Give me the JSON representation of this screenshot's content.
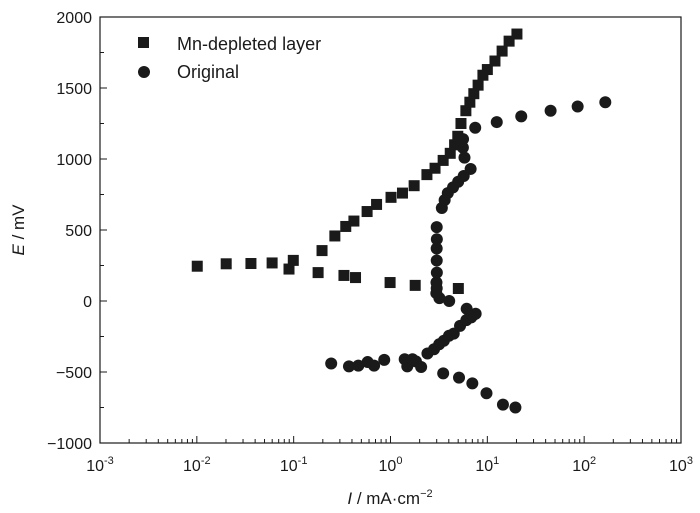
{
  "chart_data": {
    "type": "scatter",
    "x_scale": "log",
    "xlim": [
      0.001,
      1000
    ],
    "ylim": [
      -1000,
      2000
    ],
    "x_ticks": [
      {
        "base": "10",
        "exp": "-3"
      },
      {
        "base": "10",
        "exp": "-2"
      },
      {
        "base": "10",
        "exp": "-1"
      },
      {
        "base": "10",
        "exp": "0"
      },
      {
        "base": "10",
        "exp": "1"
      },
      {
        "base": "10",
        "exp": "2"
      },
      {
        "base": "10",
        "exp": "3"
      }
    ],
    "y_ticks": [
      "−1000",
      "−500",
      "0",
      "500",
      "1000",
      "1500",
      "2000"
    ],
    "xlabel": {
      "symbol": "I",
      "rest": " / mA·cm",
      "sup": "−2"
    },
    "ylabel": {
      "symbol": "E",
      "rest": " / mV"
    },
    "grid": false,
    "legend_position": "top-left",
    "series": [
      {
        "name": "Mn-depleted layer",
        "marker": "square",
        "color": "#1a1a1a",
        "points": [
          [
            0.0101,
            245
          ],
          [
            0.0201,
            262
          ],
          [
            0.0362,
            264
          ],
          [
            0.0599,
            268
          ],
          [
            0.0991,
            286
          ],
          [
            0.0895,
            225
          ],
          [
            0.1788,
            200
          ],
          [
            0.3306,
            180
          ],
          [
            0.4353,
            165
          ],
          [
            0.9902,
            130
          ],
          [
            1.7991,
            110
          ],
          [
            5.0189,
            88
          ],
          [
            0.1963,
            355
          ],
          [
            0.2663,
            458
          ],
          [
            0.3451,
            525
          ],
          [
            0.419,
            563
          ],
          [
            0.5733,
            630
          ],
          [
            0.718,
            680
          ],
          [
            1.0127,
            730
          ],
          [
            1.3296,
            760
          ],
          [
            1.7543,
            812
          ],
          [
            2.3778,
            890
          ],
          [
            2.8837,
            935
          ],
          [
            3.497,
            990
          ],
          [
            4.1393,
            1040
          ],
          [
            4.5913,
            1100
          ],
          [
            4.9538,
            1160
          ],
          [
            5.3426,
            1250
          ],
          [
            6.0038,
            1340
          ],
          [
            6.6007,
            1400
          ],
          [
            7.2526,
            1460
          ],
          [
            8.0286,
            1520
          ],
          [
            9.0043,
            1590
          ],
          [
            10.0024,
            1630
          ],
          [
            11.9897,
            1690
          ],
          [
            14.2101,
            1760
          ],
          [
            16.7802,
            1830
          ],
          [
            20.2176,
            1880
          ]
        ]
      },
      {
        "name": "Original",
        "marker": "circle",
        "color": "#1a1a1a",
        "points": [
          [
            0.2441,
            -440
          ],
          [
            0.3725,
            -460
          ],
          [
            0.4653,
            -455
          ],
          [
            0.5806,
            -430
          ],
          [
            0.6766,
            -455
          ],
          [
            0.8616,
            -415
          ],
          [
            1.4013,
            -410
          ],
          [
            1.4902,
            -460
          ],
          [
            1.6863,
            -410
          ],
          [
            1.8313,
            -425
          ],
          [
            2.0719,
            -465
          ],
          [
            2.4069,
            -370
          ],
          [
            2.8151,
            -340
          ],
          [
            3.1801,
            -305
          ],
          [
            3.5545,
            -280
          ],
          [
            4.0203,
            -245
          ],
          [
            4.4985,
            -230
          ],
          [
            5.2245,
            -175
          ],
          [
            6.0704,
            -135
          ],
          [
            7.1183,
            -100
          ],
          [
            7.5745,
            -90
          ],
          [
            6.8166,
            -115
          ],
          [
            6.1183,
            -55
          ],
          [
            4.0373,
            0
          ],
          [
            3.2003,
            20
          ],
          [
            2.9741,
            55
          ],
          [
            3.0003,
            90
          ],
          [
            2.9843,
            130
          ],
          [
            3.01,
            200
          ],
          [
            3.0023,
            285
          ],
          [
            2.9988,
            370
          ],
          [
            3.0101,
            435
          ],
          [
            3.0,
            520
          ],
          [
            3.3893,
            655
          ],
          [
            3.6232,
            710
          ],
          [
            3.9051,
            760
          ],
          [
            4.4221,
            800
          ],
          [
            4.9986,
            840
          ],
          [
            5.7033,
            880
          ],
          [
            6.7218,
            930
          ],
          [
            5.8082,
            1010
          ],
          [
            5.5921,
            1080
          ],
          [
            5.6105,
            1140
          ],
          [
            7.4963,
            1220
          ],
          [
            12.5113,
            1260
          ],
          [
            22.4006,
            1300
          ],
          [
            45.0116,
            1340
          ],
          [
            85.6412,
            1370
          ],
          [
            165.3121,
            1400
          ],
          [
            3.5,
            -510
          ],
          [
            5.1,
            -540
          ],
          [
            7.0,
            -580
          ],
          [
            9.8,
            -650
          ],
          [
            14.5,
            -730
          ],
          [
            19.5,
            -750
          ]
        ]
      }
    ]
  }
}
